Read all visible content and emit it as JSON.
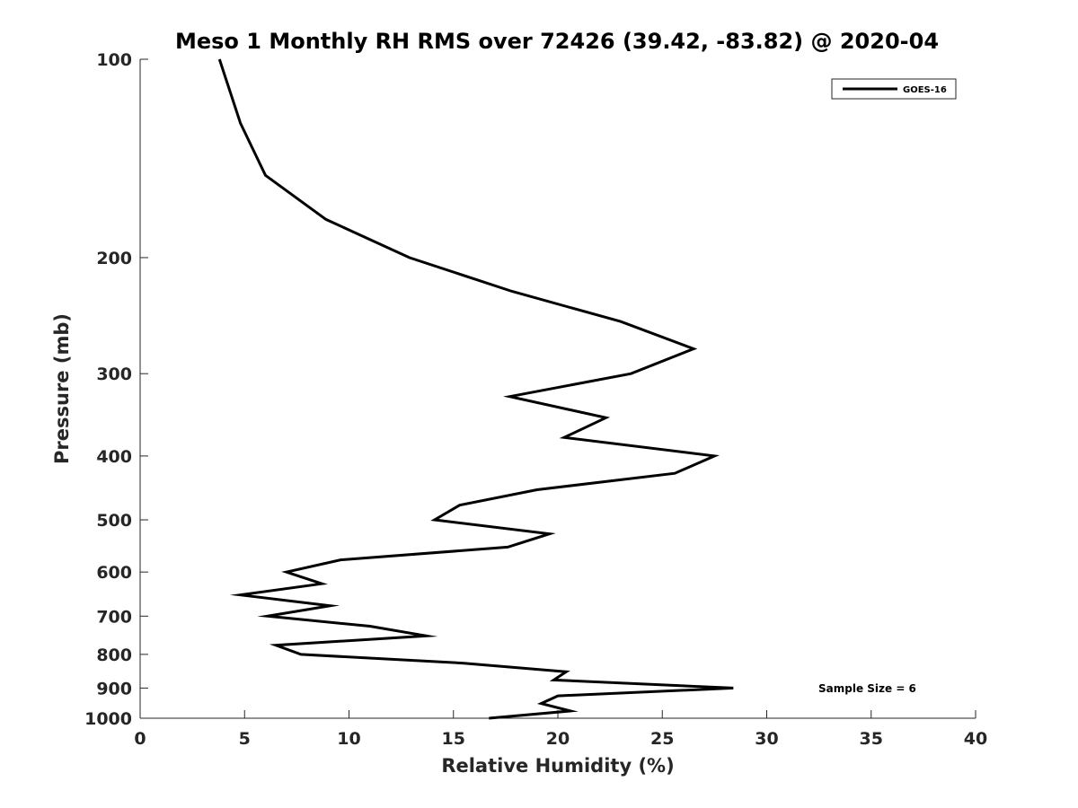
{
  "chart_data": {
    "type": "line",
    "title": "Meso 1 Monthly RH RMS over 72426 (39.42, -83.82) @ 2020-04",
    "xlabel": "Relative Humidity (%)",
    "ylabel": "Pressure (mb)",
    "xlim": [
      0,
      40
    ],
    "ylim": [
      100,
      1000
    ],
    "y_scale": "log",
    "y_reversed": true,
    "x_ticks": [
      0,
      5,
      10,
      15,
      20,
      25,
      30,
      35,
      40
    ],
    "y_ticks": [
      100,
      200,
      300,
      400,
      500,
      600,
      700,
      800,
      900,
      1000
    ],
    "grid": false,
    "legend_position": "top-right",
    "annotation": "Sample Size = 6",
    "series": [
      {
        "name": "GOES-16",
        "color": "#000000",
        "points": [
          {
            "x": 3.8,
            "y": 100
          },
          {
            "x": 4.8,
            "y": 125
          },
          {
            "x": 6.0,
            "y": 150
          },
          {
            "x": 8.9,
            "y": 175
          },
          {
            "x": 12.9,
            "y": 200
          },
          {
            "x": 17.8,
            "y": 225
          },
          {
            "x": 23.0,
            "y": 250
          },
          {
            "x": 26.5,
            "y": 275
          },
          {
            "x": 23.5,
            "y": 300
          },
          {
            "x": 17.7,
            "y": 325
          },
          {
            "x": 22.3,
            "y": 350
          },
          {
            "x": 20.3,
            "y": 375
          },
          {
            "x": 27.5,
            "y": 400
          },
          {
            "x": 25.6,
            "y": 425
          },
          {
            "x": 19.0,
            "y": 450
          },
          {
            "x": 15.3,
            "y": 475
          },
          {
            "x": 14.1,
            "y": 500
          },
          {
            "x": 19.6,
            "y": 525
          },
          {
            "x": 17.6,
            "y": 550
          },
          {
            "x": 9.6,
            "y": 575
          },
          {
            "x": 7.0,
            "y": 600
          },
          {
            "x": 8.7,
            "y": 625
          },
          {
            "x": 4.8,
            "y": 650
          },
          {
            "x": 9.1,
            "y": 675
          },
          {
            "x": 6.1,
            "y": 700
          },
          {
            "x": 11.0,
            "y": 725
          },
          {
            "x": 13.7,
            "y": 750
          },
          {
            "x": 6.5,
            "y": 775
          },
          {
            "x": 7.7,
            "y": 800
          },
          {
            "x": 15.5,
            "y": 825
          },
          {
            "x": 20.4,
            "y": 850
          },
          {
            "x": 19.8,
            "y": 875
          },
          {
            "x": 28.4,
            "y": 900
          },
          {
            "x": 20.0,
            "y": 925
          },
          {
            "x": 19.2,
            "y": 950
          },
          {
            "x": 20.6,
            "y": 975
          },
          {
            "x": 16.7,
            "y": 1000
          }
        ]
      }
    ]
  }
}
